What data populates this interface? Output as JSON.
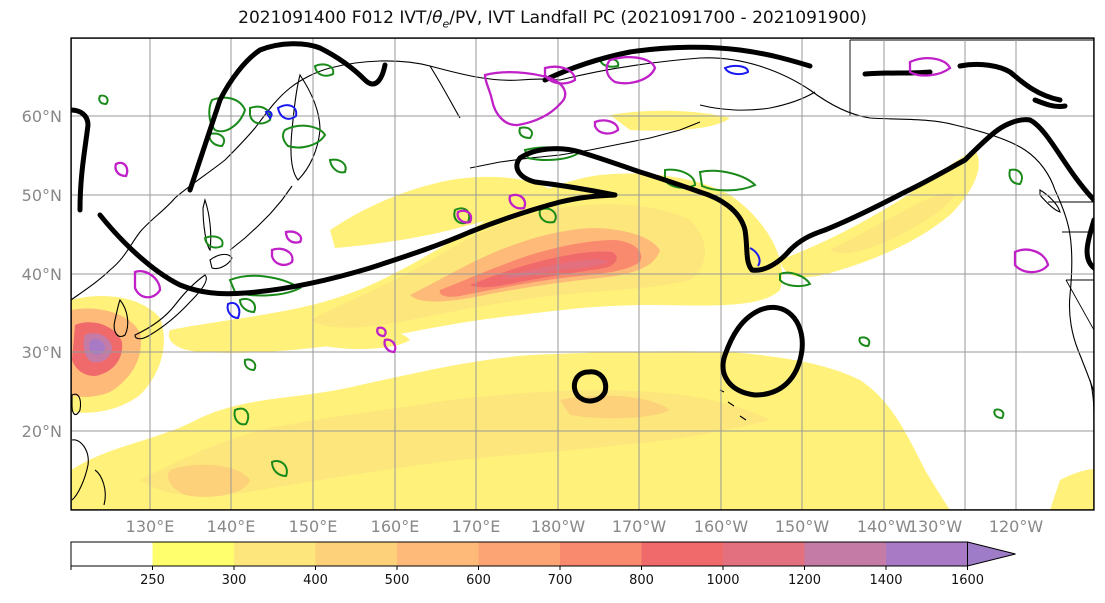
{
  "title": {
    "prefix": "2021091400 F012 IVT/",
    "theta": "θ",
    "theta_sub": "e",
    "suffix": "/PV, IVT Landfall PC (2021091700 - 2021091900)"
  },
  "map": {
    "lat_labels": [
      "60°N",
      "50°N",
      "40°N",
      "30°N",
      "20°N"
    ],
    "lon_labels": [
      "130°E",
      "140°E",
      "150°E",
      "160°E",
      "170°E",
      "180°W",
      "170°W",
      "160°W",
      "150°W",
      "140°W",
      "130°W",
      "120°W"
    ],
    "layers": [
      "IVT shading",
      "theta-e contours (black)",
      "PV contours (green)",
      "PV contours (blue)",
      "IVT Landfall PC contours (magenta)",
      "coastlines",
      "country/state borders"
    ]
  },
  "colorbar": {
    "tick_labels": [
      "250",
      "300",
      "400",
      "500",
      "600",
      "700",
      "800",
      "1000",
      "1200",
      "1400",
      "1600"
    ],
    "colors": [
      "#ffffff",
      "#ffff6e",
      "#fde67c",
      "#fdd07a",
      "#fdba78",
      "#fca474",
      "#f98a6e",
      "#f06a6c",
      "#e2707e",
      "#c47ca6",
      "#a87ac5",
      "#9e7cc8"
    ],
    "extend": "max"
  },
  "colors": {
    "theta_e": "#000000",
    "pv_green": "#1a8a1a",
    "pv_blue": "#1a1af0",
    "landfall_pc": "#c020c8",
    "gridline": "#999999"
  }
}
